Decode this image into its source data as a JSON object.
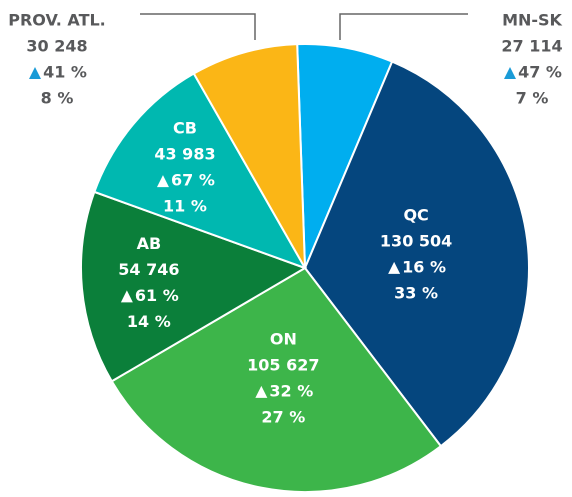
{
  "chart_data": {
    "type": "pie",
    "categories": [
      "MN-SK",
      "QC",
      "ON",
      "AB",
      "CB",
      "PROV. ATL."
    ],
    "values": [
      27114,
      130504,
      105627,
      54746,
      43983,
      30248
    ],
    "value_labels": [
      "27 114",
      "130 504",
      "105 627",
      "54 746",
      "43 983",
      "30 248"
    ],
    "change_values": [
      47,
      16,
      32,
      61,
      67,
      41
    ],
    "change_labels": [
      "47 %",
      "16 %",
      "32 %",
      "61 %",
      "67 %",
      "41 %"
    ],
    "share_values": [
      7,
      33,
      27,
      14,
      11,
      8
    ],
    "share_labels": [
      "7 %",
      "33 %",
      "27 %",
      "14 %",
      "11 %",
      "8 %"
    ],
    "colors": [
      "#00aeef",
      "#05467e",
      "#3db54a",
      "#0b7f3a",
      "#00b8b0",
      "#fbb616"
    ]
  }
}
